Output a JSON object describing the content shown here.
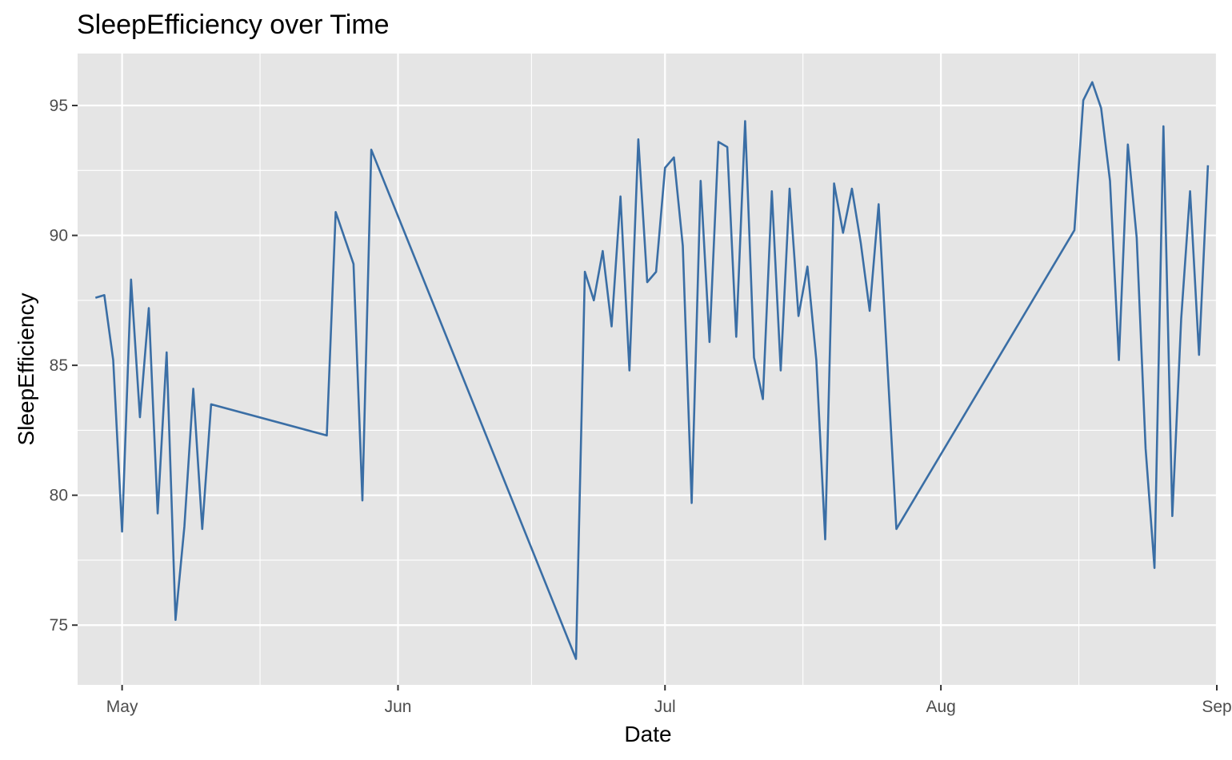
{
  "chart_data": {
    "type": "line",
    "title": "SleepEfficiency over Time",
    "xlabel": "Date",
    "ylabel": "SleepEfficiency",
    "x_axis_type": "date",
    "xlim": [
      "2024-04-26",
      "2024-09-01"
    ],
    "ylim": [
      72.7,
      97.0
    ],
    "x_ticks": [
      {
        "date": "2024-05-01",
        "label": "May"
      },
      {
        "date": "2024-06-01",
        "label": "Jun"
      },
      {
        "date": "2024-07-01",
        "label": "Jul"
      },
      {
        "date": "2024-08-01",
        "label": "Aug"
      },
      {
        "date": "2024-09-01",
        "label": "Sep"
      }
    ],
    "y_ticks": [
      75,
      80,
      85,
      90,
      95
    ],
    "grid": true,
    "background": "#e5e5e5",
    "line_color": "#3a6ea5",
    "series": [
      {
        "points": [
          [
            "2024-04-28",
            87.6
          ],
          [
            "2024-04-29",
            87.7
          ],
          [
            "2024-04-30",
            85.2
          ],
          [
            "2024-05-01",
            78.6
          ],
          [
            "2024-05-02",
            88.3
          ],
          [
            "2024-05-03",
            83.0
          ],
          [
            "2024-05-04",
            87.2
          ],
          [
            "2024-05-05",
            79.3
          ],
          [
            "2024-05-06",
            85.5
          ],
          [
            "2024-05-07",
            75.2
          ],
          [
            "2024-05-08",
            78.8
          ],
          [
            "2024-05-09",
            84.1
          ],
          [
            "2024-05-10",
            78.7
          ],
          [
            "2024-05-11",
            83.5
          ],
          [
            "2024-05-24",
            82.3
          ],
          [
            "2024-05-25",
            90.9
          ],
          [
            "2024-05-27",
            88.9
          ],
          [
            "2024-05-28",
            79.8
          ],
          [
            "2024-05-29",
            93.3
          ],
          [
            "2024-06-21",
            73.7
          ],
          [
            "2024-06-22",
            88.6
          ],
          [
            "2024-06-23",
            87.5
          ],
          [
            "2024-06-24",
            89.4
          ],
          [
            "2024-06-25",
            86.5
          ],
          [
            "2024-06-26",
            91.5
          ],
          [
            "2024-06-27",
            84.8
          ],
          [
            "2024-06-28",
            93.7
          ],
          [
            "2024-06-29",
            88.2
          ],
          [
            "2024-06-30",
            88.6
          ],
          [
            "2024-07-01",
            92.6
          ],
          [
            "2024-07-02",
            93.0
          ],
          [
            "2024-07-03",
            89.6
          ],
          [
            "2024-07-04",
            79.7
          ],
          [
            "2024-07-05",
            92.1
          ],
          [
            "2024-07-06",
            85.9
          ],
          [
            "2024-07-07",
            93.6
          ],
          [
            "2024-07-08",
            93.4
          ],
          [
            "2024-07-09",
            86.1
          ],
          [
            "2024-07-10",
            94.4
          ],
          [
            "2024-07-11",
            85.3
          ],
          [
            "2024-07-12",
            83.7
          ],
          [
            "2024-07-13",
            91.7
          ],
          [
            "2024-07-14",
            84.8
          ],
          [
            "2024-07-15",
            91.8
          ],
          [
            "2024-07-16",
            86.9
          ],
          [
            "2024-07-17",
            88.8
          ],
          [
            "2024-07-18",
            85.2
          ],
          [
            "2024-07-19",
            78.3
          ],
          [
            "2024-07-20",
            92.0
          ],
          [
            "2024-07-21",
            90.1
          ],
          [
            "2024-07-22",
            91.8
          ],
          [
            "2024-07-23",
            89.7
          ],
          [
            "2024-07-24",
            87.1
          ],
          [
            "2024-07-25",
            91.2
          ],
          [
            "2024-07-27",
            78.7
          ],
          [
            "2024-08-16",
            90.2
          ],
          [
            "2024-08-17",
            95.2
          ],
          [
            "2024-08-18",
            95.9
          ],
          [
            "2024-08-19",
            94.9
          ],
          [
            "2024-08-20",
            92.1
          ],
          [
            "2024-08-21",
            85.2
          ],
          [
            "2024-08-22",
            93.5
          ],
          [
            "2024-08-23",
            89.9
          ],
          [
            "2024-08-24",
            81.8
          ],
          [
            "2024-08-25",
            77.2
          ],
          [
            "2024-08-26",
            94.2
          ],
          [
            "2024-08-27",
            79.2
          ],
          [
            "2024-08-28",
            86.8
          ],
          [
            "2024-08-29",
            91.7
          ],
          [
            "2024-08-30",
            85.4
          ],
          [
            "2024-08-31",
            92.7
          ]
        ]
      }
    ]
  }
}
